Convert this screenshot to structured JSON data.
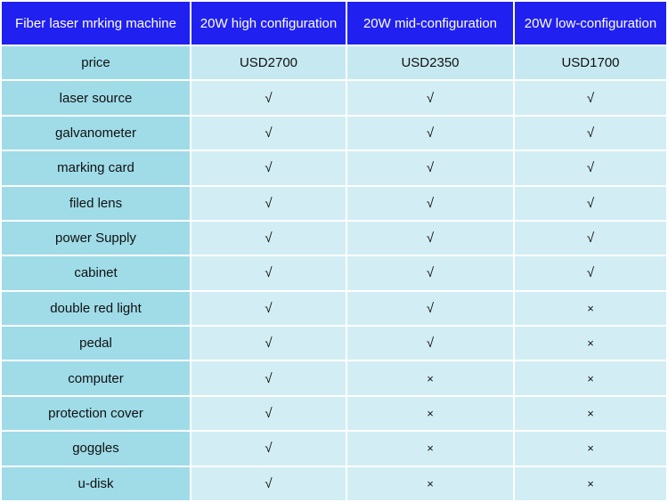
{
  "table": {
    "headers": [
      "Fiber laser mrking machine",
      "20W high configuration",
      "20W mid-configuration",
      "20W low-configuration"
    ],
    "price_row": {
      "label": "price",
      "values": [
        "USD2700",
        "USD2350",
        "USD1700"
      ]
    },
    "marks": {
      "yes": "√",
      "no": "×"
    },
    "rows": [
      {
        "feature": "laser source",
        "high": "√",
        "mid": "√",
        "low": "√"
      },
      {
        "feature": "galvanometer",
        "high": "√",
        "mid": "√",
        "low": "√"
      },
      {
        "feature": "marking card",
        "high": "√",
        "mid": "√",
        "low": "√"
      },
      {
        "feature": "filed lens",
        "high": "√",
        "mid": "√",
        "low": "√"
      },
      {
        "feature": "power Supply",
        "high": "√",
        "mid": "√",
        "low": "√"
      },
      {
        "feature": "cabinet",
        "high": "√",
        "mid": "√",
        "low": "√"
      },
      {
        "feature": "double red light",
        "high": "√",
        "mid": "√",
        "low": "×"
      },
      {
        "feature": "pedal",
        "high": "√",
        "mid": "√",
        "low": "×"
      },
      {
        "feature": "computer",
        "high": "√",
        "mid": "×",
        "low": "×"
      },
      {
        "feature": "protection cover",
        "high": "√",
        "mid": "×",
        "low": "×"
      },
      {
        "feature": "goggles",
        "high": "√",
        "mid": "×",
        "low": "×"
      },
      {
        "feature": "u-disk",
        "high": "√",
        "mid": "×",
        "low": "×"
      }
    ],
    "colors": {
      "header_bg": "#2020f0",
      "header_text": "#ffffff",
      "feature_cell_bg": "#9fdce8",
      "value_cell_bg": "#d2eef4"
    }
  }
}
